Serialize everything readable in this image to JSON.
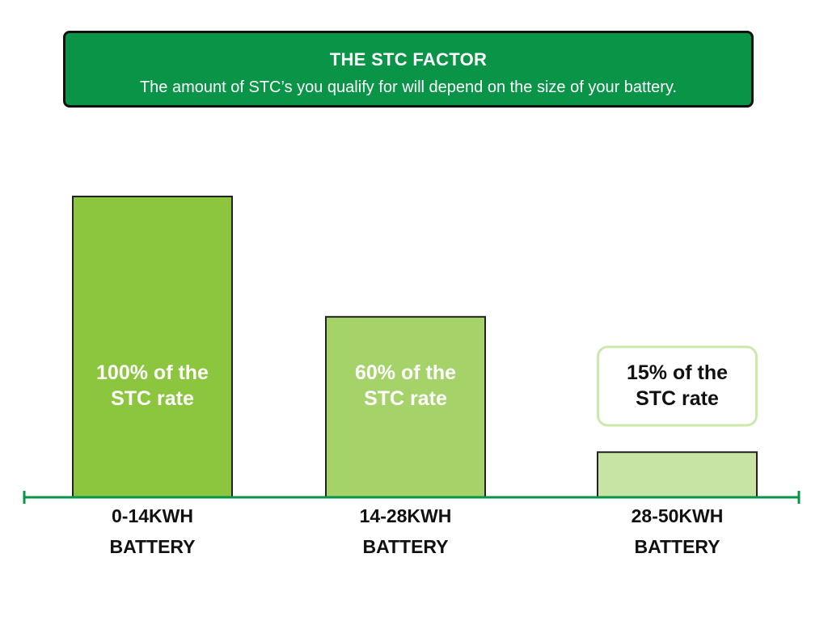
{
  "header": {
    "title": "THE STC FACTOR",
    "subtitle": "The amount of STC’s you qualify for will depend on the size of your battery."
  },
  "colors": {
    "header_bg": "#0a9447",
    "axis": "#0a9447",
    "bar_colors": [
      "#8cc63f",
      "#a5d36a",
      "#c8e4a4"
    ],
    "label_box_border": "#cde8ad"
  },
  "chart_data": {
    "type": "bar",
    "title": "THE STC FACTOR",
    "categories": [
      [
        "0-14KWH",
        "BATTERY"
      ],
      [
        "14-28KWH",
        "BATTERY"
      ],
      [
        "28-50KWH",
        "BATTERY"
      ]
    ],
    "values": [
      100,
      60,
      15
    ],
    "value_unit": "% of the STC rate",
    "data_labels": [
      [
        "100% of the",
        "STC rate"
      ],
      [
        "60% of the",
        "STC rate"
      ],
      [
        "15% of the",
        "STC rate"
      ]
    ],
    "ylim": [
      0,
      100
    ],
    "grid": false,
    "legend": "none"
  }
}
